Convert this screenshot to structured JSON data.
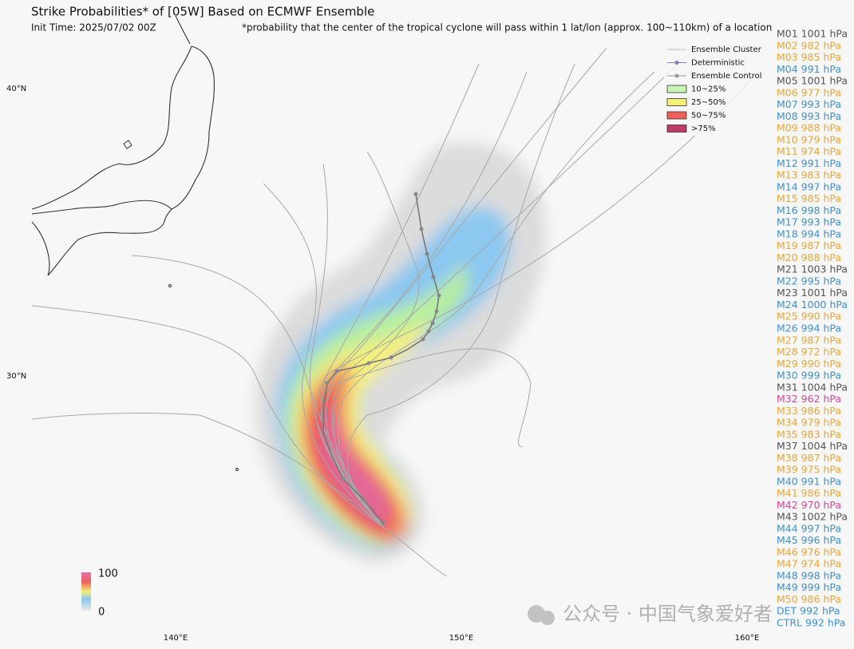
{
  "header": {
    "title": "Strike Probabilities* of [05W] Based on ECMWF Ensemble",
    "init_time": "Init Time: 2025/07/02 00Z",
    "note": "*probability that the center of the tropical cyclone will pass within 1 lat/lon (approx. 100~110km) of a location"
  },
  "legend": [
    {
      "label": "Ensemble Cluster"
    },
    {
      "label": "Deterministic"
    },
    {
      "label": "Ensemble Control"
    },
    {
      "label": "10~25%",
      "color": "#c8f5b4"
    },
    {
      "label": "25~50%",
      "color": "#f5f07a"
    },
    {
      "label": "50~75%",
      "color": "#f0605a"
    },
    {
      "label": ">75%",
      "color": "#c03a68"
    }
  ],
  "lat_labels": [
    "40°N",
    "30°N"
  ],
  "lon_labels": [
    "140°E",
    "150°E",
    "160°E"
  ],
  "colorbar": {
    "max": "100",
    "min": "0"
  },
  "watermark": "公众号 · 中国气象爱好者",
  "members": [
    {
      "label": "M01 1001 hPa",
      "color": "#555555"
    },
    {
      "label": "M02 982 hPa",
      "color": "#f0a52a"
    },
    {
      "label": "M03 985 hPa",
      "color": "#f0a52a"
    },
    {
      "label": "M04 991 hPa",
      "color": "#3a92d4"
    },
    {
      "label": "M05 1001 hPa",
      "color": "#555555"
    },
    {
      "label": "M06 977 hPa",
      "color": "#f0a52a"
    },
    {
      "label": "M07 993 hPa",
      "color": "#3a92d4"
    },
    {
      "label": "M08 993 hPa",
      "color": "#3a92d4"
    },
    {
      "label": "M09 988 hPa",
      "color": "#f0a52a"
    },
    {
      "label": "M10 979 hPa",
      "color": "#f0a52a"
    },
    {
      "label": "M11 974 hPa",
      "color": "#f0a52a"
    },
    {
      "label": "M12 991 hPa",
      "color": "#3a92d4"
    },
    {
      "label": "M13 983 hPa",
      "color": "#f0a52a"
    },
    {
      "label": "M14 997 hPa",
      "color": "#3a92d4"
    },
    {
      "label": "M15 985 hPa",
      "color": "#f0a52a"
    },
    {
      "label": "M16 998 hPa",
      "color": "#3a92d4"
    },
    {
      "label": "M17 993 hPa",
      "color": "#3a92d4"
    },
    {
      "label": "M18 994 hPa",
      "color": "#3a92d4"
    },
    {
      "label": "M19 987 hPa",
      "color": "#f0a52a"
    },
    {
      "label": "M20 988 hPa",
      "color": "#f0a52a"
    },
    {
      "label": "M21 1003 hPa",
      "color": "#555555"
    },
    {
      "label": "M22 995 hPa",
      "color": "#3a92d4"
    },
    {
      "label": "M23 1001 hPa",
      "color": "#555555"
    },
    {
      "label": "M24 1000 hPa",
      "color": "#3a92d4"
    },
    {
      "label": "M25 990 hPa",
      "color": "#f0a52a"
    },
    {
      "label": "M26 994 hPa",
      "color": "#3a92d4"
    },
    {
      "label": "M27 987 hPa",
      "color": "#f0a52a"
    },
    {
      "label": "M28 972 hPa",
      "color": "#f0a52a"
    },
    {
      "label": "M29 990 hPa",
      "color": "#f0a52a"
    },
    {
      "label": "M30 999 hPa",
      "color": "#3a92d4"
    },
    {
      "label": "M31 1004 hPa",
      "color": "#555555"
    },
    {
      "label": "M32 962 hPa",
      "color": "#e0409a"
    },
    {
      "label": "M33 986 hPa",
      "color": "#f0a52a"
    },
    {
      "label": "M34 979 hPa",
      "color": "#f0a52a"
    },
    {
      "label": "M35 983 hPa",
      "color": "#f0a52a"
    },
    {
      "label": "M37 1004 hPa",
      "color": "#555555"
    },
    {
      "label": "M38 987 hPa",
      "color": "#f0a52a"
    },
    {
      "label": "M39 975 hPa",
      "color": "#f0a52a"
    },
    {
      "label": "M40 991 hPa",
      "color": "#3a92d4"
    },
    {
      "label": "M41 986 hPa",
      "color": "#f0a52a"
    },
    {
      "label": "M42 970 hPa",
      "color": "#e0409a"
    },
    {
      "label": "M43 1002 hPa",
      "color": "#555555"
    },
    {
      "label": "M44 997 hPa",
      "color": "#3a92d4"
    },
    {
      "label": "M45 996 hPa",
      "color": "#3a92d4"
    },
    {
      "label": "M46 976 hPa",
      "color": "#f0a52a"
    },
    {
      "label": "M47 974 hPa",
      "color": "#f0a52a"
    },
    {
      "label": "M48 998 hPa",
      "color": "#3a92d4"
    },
    {
      "label": "M49 999 hPa",
      "color": "#3a92d4"
    },
    {
      "label": "M50 986 hPa",
      "color": "#f0a52a"
    },
    {
      "label": "DET 992 hPa",
      "color": "#3a92d4"
    },
    {
      "label": "CTRL 992 hPa",
      "color": "#3a92d4"
    }
  ]
}
